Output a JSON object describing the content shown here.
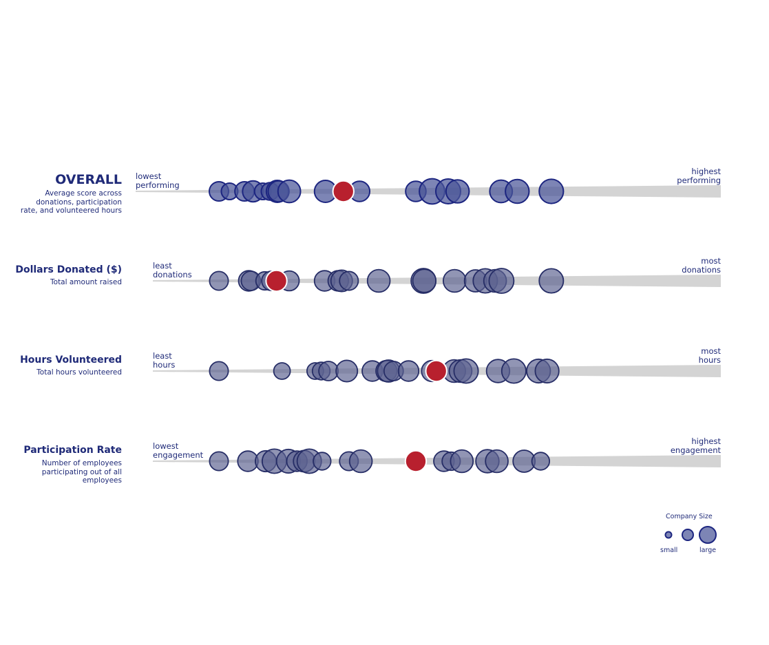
{
  "colors": {
    "track": "#d4d4d4",
    "bubble_overall": "#4b5699",
    "bubble_stroke_overall": "#1c2580",
    "bubble_metric": "#5d6391",
    "bubble_stroke_metric": "#262d66",
    "highlight": "#b8202e",
    "text": "#1f2a78"
  },
  "rows": [
    {
      "title": "OVERALL",
      "subtitle": "Average score across donations, participation rate, and volunteered hours",
      "low_label": "lowest\nperforming",
      "high_label": "highest\nperforming"
    },
    {
      "title": "Dollars Donated ($)",
      "subtitle": "Total amount raised",
      "low_label": "least\ndonations",
      "high_label": "most\ndonations"
    },
    {
      "title": "Hours Volunteered",
      "subtitle": "Total hours volunteered",
      "low_label": "least\nhours",
      "high_label": "most\nhours"
    },
    {
      "title": "Participation Rate",
      "subtitle": "Number of employees participating out of all employees",
      "low_label": "lowest\nengagement",
      "high_label": "highest\nengagement"
    }
  ],
  "legend": {
    "title": "Company Size",
    "small_label": "small",
    "large_label": "large",
    "sizes": [
      1,
      2,
      3
    ]
  },
  "chart_data": {
    "type": "scatter",
    "x_scale": "rank from lowest (0) to highest (1)",
    "size_encoding": "Company Size",
    "panels": [
      {
        "name": "OVERALL",
        "points": [
          {
            "x": 0.0,
            "size": 2
          },
          {
            "x": 0.025,
            "size": 1.5
          },
          {
            "x": 0.06,
            "size": 2
          },
          {
            "x": 0.08,
            "size": 2.3
          },
          {
            "x": 0.103,
            "size": 1.5
          },
          {
            "x": 0.12,
            "size": 1.7
          },
          {
            "x": 0.137,
            "size": 2.5
          },
          {
            "x": 0.14,
            "size": 2.3
          },
          {
            "x": 0.165,
            "size": 2.6
          },
          {
            "x": 0.25,
            "size": 2.5
          },
          {
            "x": 0.33,
            "size": 2.2
          },
          {
            "x": 0.462,
            "size": 2.2
          },
          {
            "x": 0.5,
            "size": 3.1
          },
          {
            "x": 0.538,
            "size": 3.0
          },
          {
            "x": 0.56,
            "size": 2.7
          },
          {
            "x": 0.662,
            "size": 2.6
          },
          {
            "x": 0.7,
            "size": 2.8
          },
          {
            "x": 0.78,
            "size": 2.9
          }
        ],
        "highlight": {
          "x": 0.292,
          "size": 2.3
        }
      },
      {
        "name": "Dollars Donated ($)",
        "points": [
          {
            "x": 0.0,
            "size": 1.9
          },
          {
            "x": 0.07,
            "size": 2.2
          },
          {
            "x": 0.075,
            "size": 2.0
          },
          {
            "x": 0.108,
            "size": 1.8
          },
          {
            "x": 0.123,
            "size": 2.0
          },
          {
            "x": 0.165,
            "size": 2.1
          },
          {
            "x": 0.248,
            "size": 2.2
          },
          {
            "x": 0.28,
            "size": 2.2
          },
          {
            "x": 0.288,
            "size": 2.4
          },
          {
            "x": 0.305,
            "size": 1.9
          },
          {
            "x": 0.375,
            "size": 2.6
          },
          {
            "x": 0.48,
            "size": 3.0
          },
          {
            "x": 0.482,
            "size": 2.7
          },
          {
            "x": 0.553,
            "size": 2.6
          },
          {
            "x": 0.602,
            "size": 2.5
          },
          {
            "x": 0.625,
            "size": 2.9
          },
          {
            "x": 0.648,
            "size": 2.6
          },
          {
            "x": 0.663,
            "size": 3.0
          },
          {
            "x": 0.78,
            "size": 2.9
          }
        ],
        "highlight": {
          "x": 0.135,
          "size": 2.3
        }
      },
      {
        "name": "Hours Volunteered",
        "points": [
          {
            "x": 0.0,
            "size": 1.9
          },
          {
            "x": 0.148,
            "size": 1.5
          },
          {
            "x": 0.226,
            "size": 1.5
          },
          {
            "x": 0.24,
            "size": 1.7
          },
          {
            "x": 0.257,
            "size": 2.0
          },
          {
            "x": 0.3,
            "size": 2.4
          },
          {
            "x": 0.36,
            "size": 2.2
          },
          {
            "x": 0.393,
            "size": 2.3
          },
          {
            "x": 0.398,
            "size": 2.5
          },
          {
            "x": 0.41,
            "size": 2.0
          },
          {
            "x": 0.445,
            "size": 2.2
          },
          {
            "x": 0.5,
            "size": 2.3
          },
          {
            "x": 0.552,
            "size": 2.6
          },
          {
            "x": 0.567,
            "size": 2.6
          },
          {
            "x": 0.58,
            "size": 2.9
          },
          {
            "x": 0.655,
            "size": 2.7
          },
          {
            "x": 0.692,
            "size": 2.9
          },
          {
            "x": 0.75,
            "size": 2.8
          },
          {
            "x": 0.77,
            "size": 2.8
          }
        ],
        "highlight": {
          "x": 0.51,
          "size": 2.3
        }
      },
      {
        "name": "Participation Rate",
        "points": [
          {
            "x": 0.0,
            "size": 1.9
          },
          {
            "x": 0.068,
            "size": 2.2
          },
          {
            "x": 0.11,
            "size": 2.3
          },
          {
            "x": 0.13,
            "size": 2.9
          },
          {
            "x": 0.163,
            "size": 2.8
          },
          {
            "x": 0.183,
            "size": 2.2
          },
          {
            "x": 0.2,
            "size": 2.4
          },
          {
            "x": 0.212,
            "size": 2.9
          },
          {
            "x": 0.242,
            "size": 1.7
          },
          {
            "x": 0.305,
            "size": 1.9
          },
          {
            "x": 0.333,
            "size": 2.6
          },
          {
            "x": 0.528,
            "size": 2.2
          },
          {
            "x": 0.545,
            "size": 1.8
          },
          {
            "x": 0.57,
            "size": 2.6
          },
          {
            "x": 0.63,
            "size": 2.7
          },
          {
            "x": 0.652,
            "size": 2.6
          },
          {
            "x": 0.716,
            "size": 2.5
          },
          {
            "x": 0.755,
            "size": 1.7
          }
        ],
        "highlight": {
          "x": 0.462,
          "size": 2.3
        }
      }
    ]
  }
}
